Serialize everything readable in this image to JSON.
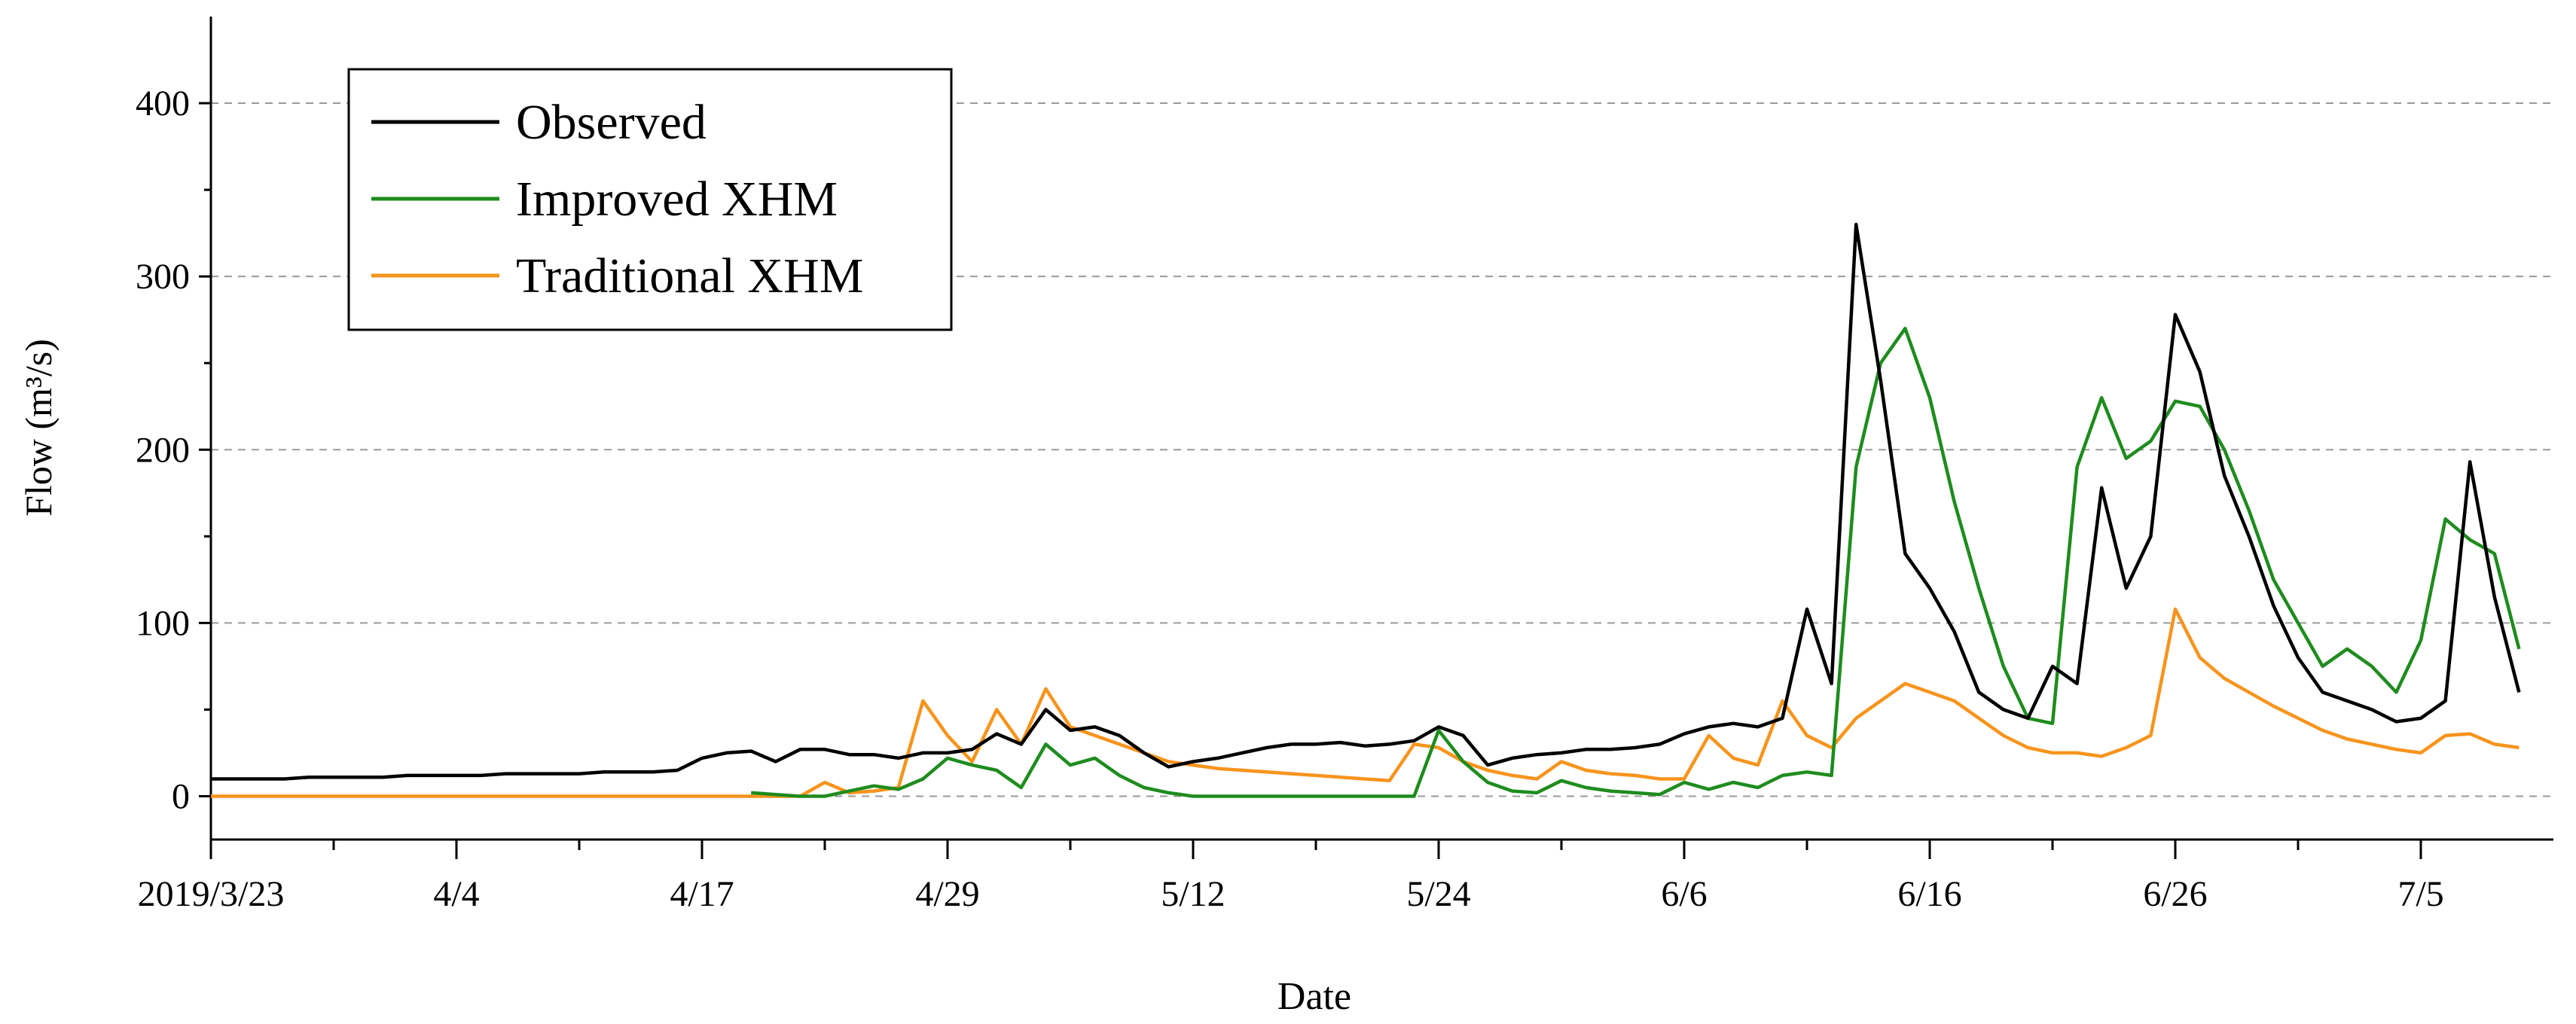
{
  "chart_data": {
    "type": "line",
    "xlabel": "Date",
    "ylabel": "Flow (m³/s)",
    "categories": [
      "2019/3/23",
      null,
      null,
      null,
      null,
      null,
      null,
      null,
      null,
      null,
      "4/4",
      null,
      null,
      null,
      null,
      null,
      null,
      null,
      null,
      null,
      "4/17",
      null,
      null,
      null,
      null,
      null,
      null,
      null,
      null,
      null,
      "4/29",
      null,
      null,
      null,
      null,
      null,
      null,
      null,
      null,
      null,
      "5/12",
      null,
      null,
      null,
      null,
      null,
      null,
      null,
      null,
      null,
      "5/24",
      null,
      null,
      null,
      null,
      null,
      null,
      null,
      null,
      null,
      "6/6",
      null,
      null,
      null,
      null,
      null,
      null,
      null,
      null,
      null,
      "6/16",
      null,
      null,
      null,
      null,
      null,
      null,
      null,
      null,
      null,
      "6/26",
      null,
      null,
      null,
      null,
      null,
      null,
      null,
      null,
      null,
      "7/5",
      null,
      null,
      null,
      null
    ],
    "series": [
      {
        "name": "Observed",
        "color": "#000000",
        "values": [
          10,
          10,
          10,
          10,
          11,
          11,
          11,
          11,
          12,
          12,
          12,
          12,
          13,
          13,
          13,
          13,
          14,
          14,
          14,
          15,
          22,
          25,
          26,
          20,
          27,
          27,
          24,
          24,
          22,
          25,
          25,
          27,
          36,
          30,
          50,
          38,
          40,
          35,
          25,
          17,
          20,
          22,
          25,
          28,
          30,
          30,
          31,
          29,
          30,
          32,
          40,
          35,
          18,
          22,
          24,
          25,
          27,
          27,
          28,
          30,
          36,
          40,
          42,
          40,
          45,
          108,
          65,
          330,
          240,
          140,
          120,
          95,
          60,
          50,
          45,
          75,
          65,
          178,
          120,
          150,
          278,
          245,
          185,
          150,
          110,
          80,
          60,
          55,
          50,
          43,
          45,
          55,
          193,
          115,
          60
        ]
      },
      {
        "name": "Improved XHM",
        "color": "#1e8c1e",
        "values": [
          null,
          null,
          null,
          null,
          null,
          null,
          null,
          null,
          null,
          null,
          null,
          null,
          null,
          null,
          null,
          null,
          null,
          null,
          null,
          null,
          null,
          null,
          2,
          1,
          0,
          0,
          3,
          6,
          4,
          10,
          22,
          18,
          15,
          5,
          30,
          18,
          22,
          12,
          5,
          2,
          0,
          0,
          0,
          0,
          0,
          0,
          0,
          0,
          0,
          0,
          38,
          20,
          8,
          3,
          2,
          9,
          5,
          3,
          2,
          1,
          8,
          4,
          8,
          5,
          12,
          14,
          12,
          190,
          250,
          270,
          230,
          170,
          120,
          75,
          45,
          42,
          190,
          230,
          195,
          205,
          228,
          225,
          200,
          165,
          125,
          100,
          75,
          85,
          75,
          60,
          90,
          160,
          148,
          140,
          85
        ]
      },
      {
        "name": "Traditional XHM",
        "color": "#f7941d",
        "values": [
          0,
          0,
          0,
          0,
          0,
          0,
          0,
          0,
          0,
          0,
          0,
          0,
          0,
          0,
          0,
          0,
          0,
          0,
          0,
          0,
          0,
          0,
          0,
          0,
          0,
          8,
          2,
          3,
          5,
          55,
          35,
          20,
          50,
          30,
          62,
          40,
          35,
          30,
          25,
          20,
          18,
          16,
          15,
          14,
          13,
          12,
          11,
          10,
          9,
          30,
          28,
          20,
          15,
          12,
          10,
          20,
          15,
          13,
          12,
          10,
          10,
          35,
          22,
          18,
          55,
          35,
          28,
          45,
          55,
          65,
          60,
          55,
          45,
          35,
          28,
          25,
          25,
          23,
          28,
          35,
          108,
          80,
          68,
          60,
          52,
          45,
          38,
          33,
          30,
          27,
          25,
          35,
          36,
          30,
          28
        ]
      }
    ],
    "ylim": [
      -25,
      450
    ],
    "yticks": [
      0,
      100,
      200,
      300,
      400
    ],
    "grid": true,
    "legend": "upper left"
  }
}
